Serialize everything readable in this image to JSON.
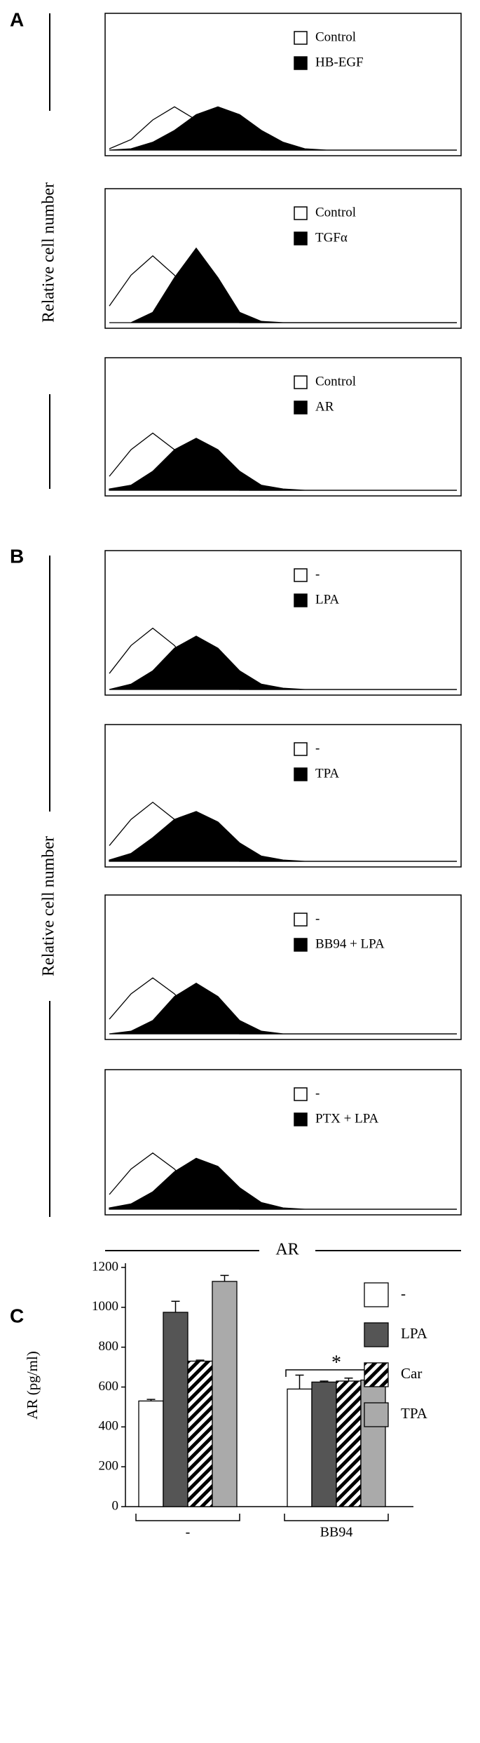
{
  "figure": {
    "A": {
      "label": "A",
      "ylabel": "Relative cell number"
    },
    "B": {
      "label": "B",
      "ylabel": "Relative cell number",
      "xlabel": "AR"
    },
    "C": {
      "label": "C"
    }
  },
  "chart_data": [
    {
      "type": "area",
      "x": [
        0,
        0.25,
        0.5,
        0.75,
        1,
        1.25,
        1.5,
        1.75,
        2,
        2.25,
        2.5,
        2.75,
        3,
        3.25,
        3.5,
        3.75,
        4
      ],
      "xlim": [
        0,
        4
      ],
      "ylim": [
        0,
        100
      ],
      "series": [
        {
          "name": "Control",
          "color": "#000000",
          "style": "open",
          "values": [
            1,
            8,
            23,
            33,
            23,
            8,
            1,
            0,
            0,
            0,
            0,
            0,
            0,
            0,
            0,
            0,
            0
          ]
        },
        {
          "name": "HB-EGF",
          "color": "#000000",
          "style": "filled",
          "values": [
            0,
            1,
            6,
            15,
            27,
            33,
            27,
            15,
            6,
            1,
            0,
            0,
            0,
            0,
            0,
            0,
            0
          ]
        }
      ]
    },
    {
      "type": "area",
      "x": [
        0,
        0.25,
        0.5,
        0.75,
        1,
        1.25,
        1.5,
        1.75,
        2,
        2.25,
        2.5,
        2.75,
        3,
        3.25,
        3.5,
        3.75,
        4
      ],
      "xlim": [
        0,
        4
      ],
      "ylim": [
        0,
        100
      ],
      "series": [
        {
          "name": "Control",
          "color": "#000000",
          "style": "open",
          "values": [
            13,
            37,
            52,
            37,
            13,
            2,
            0,
            0,
            0,
            0,
            0,
            0,
            0,
            0,
            0,
            0,
            0
          ]
        },
        {
          "name": "TGFα",
          "color": "#000000",
          "style": "filled",
          "values": [
            0,
            0,
            8,
            35,
            58,
            35,
            8,
            1,
            0,
            0,
            0,
            0,
            0,
            0,
            0,
            0,
            0
          ]
        }
      ]
    },
    {
      "type": "area",
      "x": [
        0,
        0.25,
        0.5,
        0.75,
        1,
        1.25,
        1.5,
        1.75,
        2,
        2.25,
        2.5,
        2.75,
        3,
        3.25,
        3.5,
        3.75,
        4
      ],
      "xlim": [
        0,
        4
      ],
      "ylim": [
        0,
        100
      ],
      "series": [
        {
          "name": "Control",
          "color": "#000000",
          "style": "open",
          "values": [
            11,
            32,
            45,
            32,
            11,
            2,
            0,
            0,
            0,
            0,
            0,
            0,
            0,
            0,
            0,
            0,
            0
          ]
        },
        {
          "name": "AR",
          "color": "#000000",
          "style": "filled",
          "values": [
            1,
            4,
            15,
            32,
            41,
            32,
            15,
            4,
            1,
            0,
            0,
            0,
            0,
            0,
            0,
            0,
            0
          ]
        }
      ]
    },
    {
      "type": "area",
      "x": [
        0,
        0.25,
        0.5,
        0.75,
        1,
        1.25,
        1.5,
        1.75,
        2,
        2.25,
        2.5,
        2.75,
        3,
        3.25,
        3.5,
        3.75,
        4
      ],
      "xlim": [
        0,
        4
      ],
      "ylim": [
        0,
        100
      ],
      "series": [
        {
          "name": "-",
          "color": "#000000",
          "style": "open",
          "values": [
            12,
            33,
            46,
            33,
            12,
            2,
            0,
            0,
            0,
            0,
            0,
            0,
            0,
            0,
            0,
            0,
            0
          ]
        },
        {
          "name": "LPA",
          "color": "#000000",
          "style": "filled",
          "values": [
            0,
            4,
            14,
            31,
            40,
            31,
            14,
            4,
            1,
            0,
            0,
            0,
            0,
            0,
            0,
            0,
            0
          ]
        }
      ]
    },
    {
      "type": "area",
      "x": [
        0,
        0.25,
        0.5,
        0.75,
        1,
        1.25,
        1.5,
        1.75,
        2,
        2.25,
        2.5,
        2.75,
        3,
        3.25,
        3.5,
        3.75,
        4
      ],
      "xlim": [
        0,
        4
      ],
      "ylim": [
        0,
        100
      ],
      "series": [
        {
          "name": "-",
          "color": "#000000",
          "style": "open",
          "values": [
            12,
            32,
            45,
            32,
            12,
            2,
            0,
            0,
            0,
            0,
            0,
            0,
            0,
            0,
            0,
            0,
            0
          ]
        },
        {
          "name": "TPA",
          "color": "#000000",
          "style": "filled",
          "values": [
            1,
            6,
            18,
            32,
            38,
            30,
            14,
            4,
            1,
            0,
            0,
            0,
            0,
            0,
            0,
            0,
            0
          ]
        }
      ]
    },
    {
      "type": "area",
      "x": [
        0,
        0.25,
        0.5,
        0.75,
        1,
        1.25,
        1.5,
        1.75,
        2,
        2.25,
        2.5,
        2.75,
        3,
        3.25,
        3.5,
        3.75,
        4
      ],
      "xlim": [
        0,
        4
      ],
      "ylim": [
        0,
        100
      ],
      "series": [
        {
          "name": "-",
          "color": "#000000",
          "style": "open",
          "values": [
            11,
            30,
            42,
            30,
            11,
            2,
            0,
            0,
            0,
            0,
            0,
            0,
            0,
            0,
            0,
            0,
            0
          ]
        },
        {
          "name": "BB94 + LPA",
          "color": "#000000",
          "style": "filled",
          "values": [
            0,
            2,
            10,
            28,
            38,
            28,
            10,
            2,
            0,
            0,
            0,
            0,
            0,
            0,
            0,
            0,
            0
          ]
        }
      ]
    },
    {
      "type": "area",
      "x": [
        0,
        0.25,
        0.5,
        0.75,
        1,
        1.25,
        1.5,
        1.75,
        2,
        2.25,
        2.5,
        2.75,
        3,
        3.25,
        3.5,
        3.75,
        4
      ],
      "xlim": [
        0,
        4
      ],
      "ylim": [
        0,
        100
      ],
      "series": [
        {
          "name": "-",
          "color": "#000000",
          "style": "open",
          "values": [
            11,
            30,
            42,
            30,
            11,
            2,
            0,
            0,
            0,
            0,
            0,
            0,
            0,
            0,
            0,
            0,
            0
          ]
        },
        {
          "name": "PTX + LPA",
          "color": "#000000",
          "style": "filled",
          "values": [
            1,
            4,
            13,
            28,
            38,
            32,
            16,
            5,
            1,
            0,
            0,
            0,
            0,
            0,
            0,
            0,
            0
          ]
        }
      ]
    },
    {
      "type": "bar",
      "ylabel": "AR (pg/ml)",
      "categories": [
        "-",
        "BB94"
      ],
      "ylim": [
        0,
        1200
      ],
      "yticks": [
        0,
        200,
        400,
        600,
        800,
        1000,
        1200
      ],
      "series": [
        {
          "name": "-",
          "color": "#ffffff",
          "values": [
            530,
            590
          ],
          "errors": [
            8,
            70
          ]
        },
        {
          "name": "LPA",
          "color": "#555555",
          "values": [
            975,
            625
          ],
          "errors": [
            55,
            5
          ]
        },
        {
          "name": "Car",
          "color": "#ffffff",
          "pattern": "hatch",
          "values": [
            730,
            630
          ],
          "errors": [
            5,
            15
          ]
        },
        {
          "name": "TPA",
          "color": "#aaaaaa",
          "values": [
            1130,
            635
          ],
          "errors": [
            30,
            8
          ]
        }
      ],
      "annotations": [
        "*"
      ]
    }
  ]
}
